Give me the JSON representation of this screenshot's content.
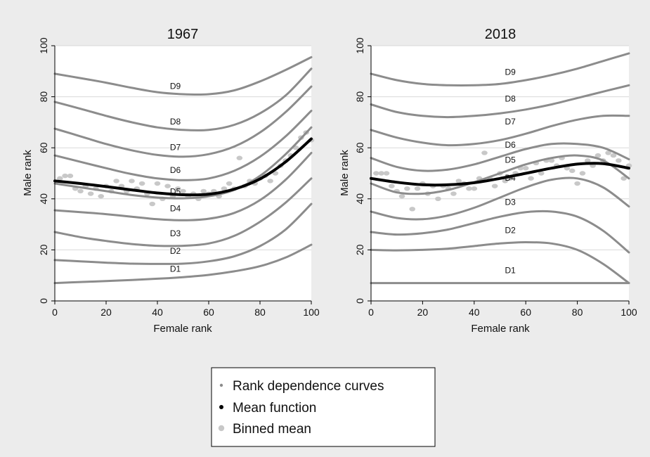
{
  "chart_data": [
    {
      "type": "line",
      "title": "1967",
      "xlabel": "Female rank",
      "ylabel": "Male rank",
      "xlim": [
        0,
        100
      ],
      "ylim": [
        0,
        100
      ],
      "xticks": [
        0,
        20,
        40,
        60,
        80,
        100
      ],
      "yticks": [
        0,
        20,
        40,
        60,
        80,
        100
      ],
      "grid": "horizontal",
      "x": [
        0,
        10,
        20,
        30,
        40,
        50,
        60,
        70,
        80,
        90,
        100
      ],
      "series": [
        {
          "name": "D1",
          "role": "rank-dependence-curve",
          "values": [
            7,
            7.4,
            7.8,
            8.2,
            8.7,
            9.3,
            10.2,
            11.6,
            13.6,
            17.0,
            22.0
          ]
        },
        {
          "name": "D2",
          "role": "rank-dependence-curve",
          "values": [
            16,
            15.5,
            15,
            14.6,
            14.5,
            14.6,
            15.5,
            17.5,
            21.5,
            28.0,
            38.0
          ]
        },
        {
          "name": "D3",
          "role": "rank-dependence-curve",
          "values": [
            27,
            25,
            23.5,
            22.3,
            21.6,
            21.6,
            22.5,
            25.5,
            31.0,
            38.5,
            48.0
          ]
        },
        {
          "name": "D4",
          "role": "rank-dependence-curve",
          "values": [
            35.5,
            34.8,
            34,
            33,
            32,
            31.6,
            32.2,
            34.5,
            39.5,
            47.5,
            58.0
          ]
        },
        {
          "name": "D5",
          "role": "rank-dependence-curve",
          "values": [
            46,
            44.5,
            43,
            41.5,
            40.5,
            40.2,
            41,
            43.5,
            49.0,
            57.5,
            68.0
          ]
        },
        {
          "name": "D6",
          "role": "rank-dependence-curve",
          "values": [
            57,
            54.5,
            52,
            49.7,
            48,
            47.3,
            48,
            51,
            56.5,
            64.5,
            74.5
          ]
        },
        {
          "name": "D7",
          "role": "rank-dependence-curve",
          "values": [
            67.5,
            64.5,
            61.5,
            59,
            57.2,
            56.5,
            57.5,
            60.5,
            66.0,
            74.0,
            84.0
          ]
        },
        {
          "name": "D8",
          "role": "rank-dependence-curve",
          "values": [
            78,
            75.3,
            72.5,
            70,
            68,
            67,
            67,
            69,
            73.5,
            80.5,
            91.0
          ]
        },
        {
          "name": "D9",
          "role": "rank-dependence-curve",
          "values": [
            89,
            87.3,
            85.5,
            83.5,
            81.8,
            81,
            81,
            82.5,
            86.0,
            90.5,
            95.5
          ]
        },
        {
          "name": "Mean function",
          "role": "mean-function",
          "values": [
            47,
            46,
            44.8,
            43.5,
            42.3,
            41.6,
            41.8,
            43.8,
            47.8,
            54.5,
            63.5
          ]
        }
      ],
      "curve_labels": [
        {
          "text": "D9",
          "x": 47,
          "y": 82
        },
        {
          "text": "D8",
          "x": 47,
          "y": 68
        },
        {
          "text": "D7",
          "x": 47,
          "y": 58
        },
        {
          "text": "D6",
          "x": 47,
          "y": 49
        },
        {
          "text": "D5",
          "x": 47,
          "y": 40.6
        },
        {
          "text": "D4",
          "x": 47,
          "y": 34
        },
        {
          "text": "D3",
          "x": 47,
          "y": 24.2
        },
        {
          "text": "D2",
          "x": 47,
          "y": 17.3
        },
        {
          "text": "D1",
          "x": 47,
          "y": 10.3
        }
      ],
      "binned_mean": {
        "x": [
          2,
          4,
          6,
          8,
          10,
          12,
          14,
          16,
          18,
          20,
          22,
          24,
          26,
          28,
          30,
          32,
          34,
          36,
          38,
          40,
          42,
          44,
          46,
          48,
          50,
          52,
          54,
          56,
          58,
          60,
          62,
          64,
          66,
          68,
          70,
          72,
          74,
          76,
          78,
          80,
          82,
          84,
          86,
          88,
          90,
          92,
          94,
          96,
          98,
          100
        ],
        "y": [
          48,
          49,
          49,
          44,
          43,
          45,
          42,
          44,
          41,
          45,
          43,
          47,
          45,
          43,
          47,
          44,
          46,
          42,
          38,
          46,
          40,
          45,
          41,
          44,
          43,
          41,
          42,
          40,
          43,
          42,
          43,
          41,
          44,
          46,
          44,
          56,
          45,
          47,
          46,
          48,
          49,
          47,
          50,
          53,
          55,
          57,
          60,
          64,
          66,
          63
        ]
      }
    },
    {
      "type": "line",
      "title": "2018",
      "xlabel": "Female rank",
      "ylabel": "Male rank",
      "xlim": [
        0,
        100
      ],
      "ylim": [
        0,
        100
      ],
      "xticks": [
        0,
        20,
        40,
        60,
        80,
        100
      ],
      "yticks": [
        0,
        20,
        40,
        60,
        80,
        100
      ],
      "grid": "horizontal",
      "x": [
        0,
        10,
        20,
        30,
        40,
        50,
        60,
        70,
        80,
        90,
        100
      ],
      "series": [
        {
          "name": "D1",
          "role": "rank-dependence-curve",
          "values": [
            7,
            7,
            7,
            7,
            7,
            7,
            7,
            7,
            7,
            7,
            7
          ]
        },
        {
          "name": "D2",
          "role": "rank-dependence-curve",
          "values": [
            20,
            19.8,
            20,
            20.5,
            21.5,
            22.5,
            23,
            22.5,
            20,
            14.5,
            7
          ]
        },
        {
          "name": "D3",
          "role": "rank-dependence-curve",
          "values": [
            27,
            26,
            26.5,
            28,
            30.5,
            33,
            34.8,
            35,
            33,
            27.5,
            19
          ]
        },
        {
          "name": "D4",
          "role": "rank-dependence-curve",
          "values": [
            35,
            32.5,
            32,
            33.5,
            36.5,
            40.5,
            44.5,
            47.5,
            48,
            44.5,
            37
          ]
        },
        {
          "name": "D5",
          "role": "rank-dependence-curve",
          "values": [
            46,
            42.5,
            42,
            43.5,
            46.5,
            50,
            53.5,
            56,
            57,
            55,
            48
          ]
        },
        {
          "name": "D6",
          "role": "rank-dependence-curve",
          "values": [
            56,
            52.5,
            51,
            51.5,
            53.5,
            56.5,
            59.5,
            61.5,
            61.5,
            60,
            55.5
          ]
        },
        {
          "name": "D7",
          "role": "rank-dependence-curve",
          "values": [
            67,
            64,
            62,
            61,
            61.5,
            63,
            65.5,
            68.5,
            71,
            72.5,
            72.5
          ]
        },
        {
          "name": "D8",
          "role": "rank-dependence-curve",
          "values": [
            77,
            74,
            72.5,
            72,
            72.5,
            73.5,
            75,
            77,
            79.5,
            82,
            84.5
          ]
        },
        {
          "name": "D9",
          "role": "rank-dependence-curve",
          "values": [
            89,
            86.5,
            85,
            84.5,
            84.5,
            85,
            86.5,
            88.5,
            91,
            94,
            97
          ]
        },
        {
          "name": "Mean function",
          "role": "mean-function",
          "values": [
            48,
            46.5,
            45.5,
            45.5,
            46.3,
            48,
            50,
            52,
            53.6,
            53.8,
            52
          ]
        }
      ],
      "curve_labels": [
        {
          "text": "D9",
          "x": 54,
          "y": 87.5
        },
        {
          "text": "D8",
          "x": 54,
          "y": 77
        },
        {
          "text": "D7",
          "x": 54,
          "y": 68
        },
        {
          "text": "D6",
          "x": 54,
          "y": 59
        },
        {
          "text": "D5",
          "x": 54,
          "y": 53
        },
        {
          "text": "D4",
          "x": 54,
          "y": 46
        },
        {
          "text": "D3",
          "x": 54,
          "y": 36.5
        },
        {
          "text": "D2",
          "x": 54,
          "y": 25.5
        },
        {
          "text": "D1",
          "x": 54,
          "y": 9.8
        }
      ],
      "binned_mean": {
        "x": [
          2,
          4,
          6,
          8,
          10,
          12,
          14,
          16,
          18,
          20,
          22,
          24,
          26,
          28,
          30,
          32,
          34,
          36,
          38,
          40,
          42,
          44,
          46,
          48,
          50,
          52,
          54,
          56,
          58,
          60,
          62,
          64,
          66,
          68,
          70,
          72,
          74,
          76,
          78,
          80,
          82,
          84,
          86,
          88,
          90,
          92,
          94,
          96,
          98,
          100
        ],
        "y": [
          50,
          50,
          50,
          45,
          43,
          41,
          44,
          36,
          44,
          46,
          42,
          45,
          40,
          45,
          44,
          42,
          47,
          46,
          44,
          44,
          48,
          58,
          48,
          45,
          50,
          47,
          48,
          50,
          52,
          52,
          48,
          54,
          50,
          55,
          55,
          53,
          56,
          52,
          51,
          46,
          50,
          55,
          53,
          57,
          55,
          58,
          57,
          55,
          48,
          53
        ]
      }
    }
  ],
  "legend": {
    "placement": "bottom-center",
    "items": [
      {
        "label": "Rank dependence curves",
        "color": "#8c8c8c",
        "marker": "small-dot"
      },
      {
        "label": "Mean function",
        "color": "#000000",
        "marker": "dot"
      },
      {
        "label": "Binned mean",
        "color": "#c8c8c8",
        "marker": "large-dot"
      }
    ]
  },
  "colors": {
    "background": "#ececec",
    "plot_area": "#ffffff",
    "grid": "#d9d9d9",
    "curve": "#8c8c8c",
    "mean": "#000000",
    "binned": "#c8c8c8"
  }
}
